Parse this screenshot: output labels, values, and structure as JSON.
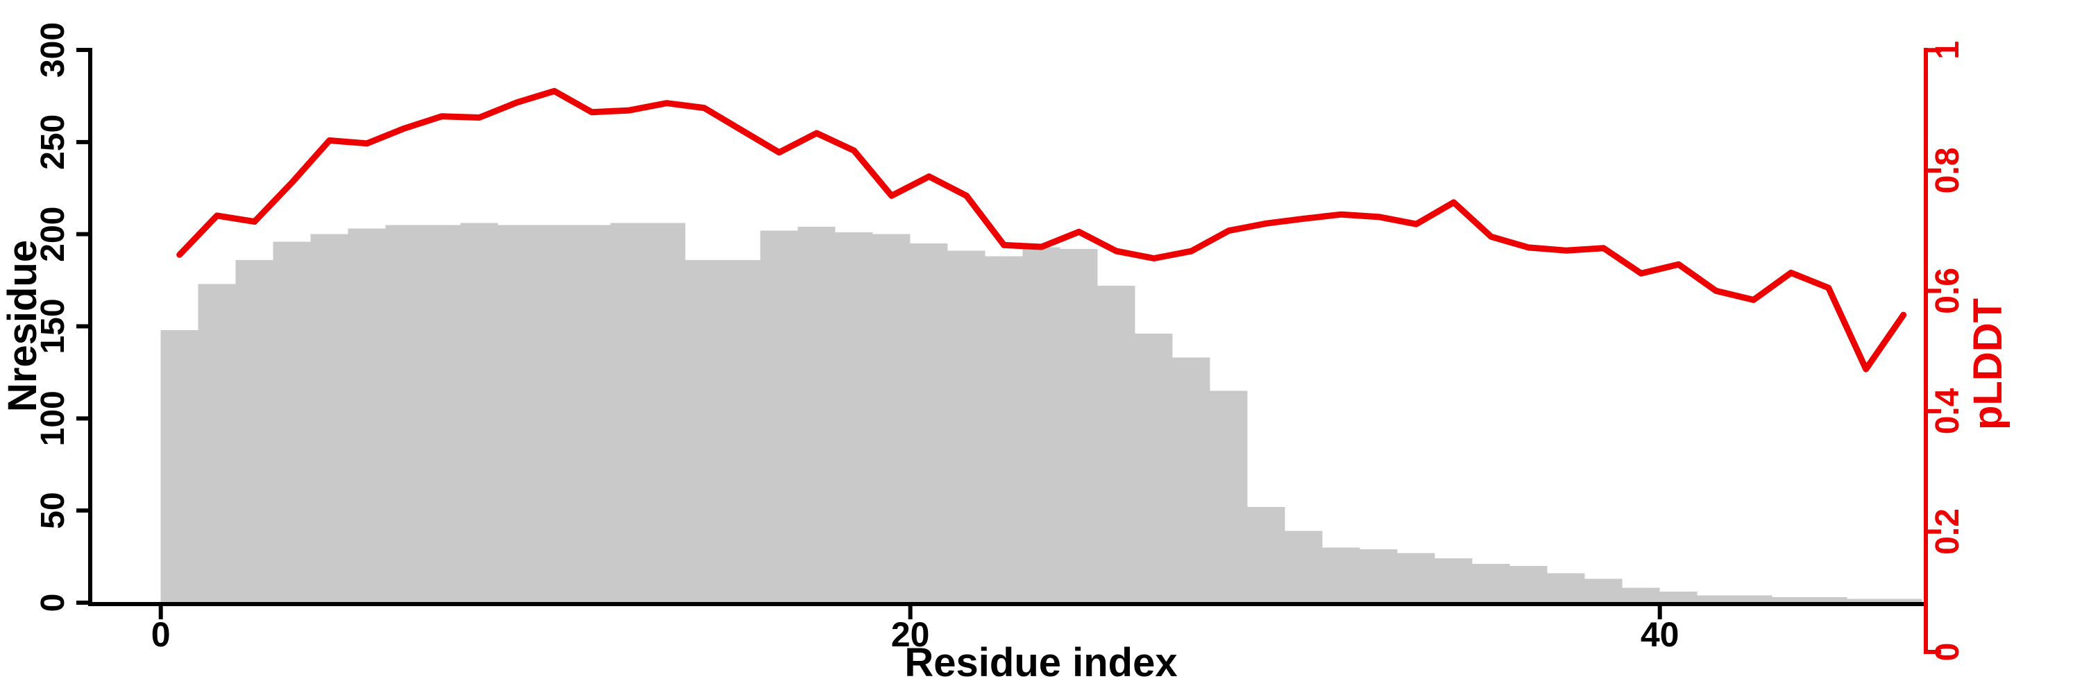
{
  "page": {
    "background": "#ffffff"
  },
  "chart_data": {
    "type": "bar",
    "subtype": "contiguous-histogram-with-line-overlay-dual-axis",
    "title": "",
    "xlabel": "Residue index",
    "x_axis": {
      "ticks": [
        0,
        20,
        40
      ],
      "tick_labels": [
        "0",
        "20",
        "40"
      ],
      "range": [
        -1.9,
        47.1
      ]
    },
    "left_axis": {
      "label": "Nresidue",
      "ticks": [
        0,
        50,
        100,
        150,
        200,
        250,
        300
      ],
      "tick_labels": [
        "0",
        "50",
        "100",
        "150",
        "200",
        "250",
        "300"
      ],
      "range": [
        0,
        300
      ],
      "color": "#000000"
    },
    "right_axis": {
      "label": "pLDDT",
      "ticks": [
        0,
        0.2,
        0.4,
        0.6,
        0.8,
        1
      ],
      "tick_labels": [
        "0",
        "0.2",
        "0.4",
        "0.6",
        "0.8",
        "1"
      ],
      "range": [
        0,
        1
      ],
      "color": "#ec0000"
    },
    "bars": {
      "color": "#c9c9c9",
      "x_start": 0,
      "bar_width": 1,
      "values": [
        148,
        173,
        186,
        196,
        200,
        203,
        205,
        205,
        206,
        205,
        205,
        205,
        206,
        206,
        186,
        186,
        202,
        204,
        201,
        200,
        195,
        191,
        188,
        193,
        192,
        172,
        146,
        133,
        115,
        52,
        39,
        30,
        29,
        27,
        24,
        21,
        20,
        16,
        13,
        8,
        6,
        4,
        4,
        3,
        3,
        2,
        2
      ]
    },
    "line": {
      "name": "pLDDT",
      "color": "#ec0000",
      "x": [
        0.5,
        1.5,
        2.5,
        3.5,
        4.5,
        5.5,
        6.5,
        7.5,
        8.5,
        9.5,
        10.5,
        11.5,
        12.5,
        13.5,
        14.5,
        15.5,
        16.5,
        17.5,
        18.5,
        19.5,
        20.5,
        21.5,
        22.5,
        23.5,
        24.5,
        25.5,
        26.5,
        27.5,
        28.5,
        29.5,
        30.5,
        31.5,
        32.5,
        33.5,
        34.5,
        35.5,
        36.5,
        37.5,
        38.5,
        39.5,
        40.5,
        41.5,
        42.5,
        43.5,
        44.5,
        45.5,
        46.5
      ],
      "y": [
        0.66,
        0.725,
        0.715,
        0.78,
        0.85,
        0.845,
        0.87,
        0.89,
        0.888,
        0.913,
        0.932,
        0.897,
        0.9,
        0.912,
        0.904,
        0.867,
        0.83,
        0.862,
        0.833,
        0.758,
        0.79,
        0.758,
        0.676,
        0.673,
        0.698,
        0.666,
        0.654,
        0.666,
        0.7,
        0.712,
        0.72,
        0.727,
        0.723,
        0.711,
        0.747,
        0.69,
        0.672,
        0.667,
        0.671,
        0.629,
        0.644,
        0.6,
        0.585,
        0.63,
        0.605,
        0.47,
        0.56
      ]
    }
  }
}
